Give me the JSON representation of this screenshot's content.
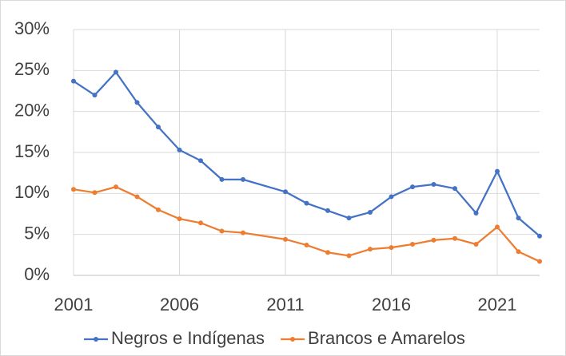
{
  "chart_data": {
    "type": "line",
    "x": [
      2001,
      2002,
      2003,
      2004,
      2005,
      2006,
      2007,
      2008,
      2009,
      2011,
      2012,
      2013,
      2014,
      2015,
      2016,
      2017,
      2018,
      2019,
      2020,
      2021,
      2022,
      2023
    ],
    "series": [
      {
        "name": "Negros e Indígenas",
        "color": "#4472c4",
        "values": [
          23.7,
          22.0,
          24.8,
          21.1,
          18.1,
          15.3,
          14.0,
          11.7,
          11.7,
          10.2,
          8.8,
          7.9,
          7.0,
          7.7,
          9.6,
          10.8,
          11.1,
          10.6,
          7.6,
          12.7,
          7.0,
          4.8
        ]
      },
      {
        "name": "Brancos e Amarelos",
        "color": "#ed7d31",
        "values": [
          10.5,
          10.1,
          10.8,
          9.6,
          8.0,
          6.9,
          6.4,
          5.4,
          5.2,
          4.4,
          3.7,
          2.8,
          2.4,
          3.2,
          3.4,
          3.8,
          4.3,
          4.5,
          3.8,
          5.9,
          2.9,
          1.7
        ]
      }
    ],
    "xlim": [
      2001,
      2023
    ],
    "xticks": [
      2001,
      2006,
      2011,
      2016,
      2021
    ],
    "ylim": [
      0,
      30
    ],
    "yticks": [
      {
        "value": 0,
        "label": "0%"
      },
      {
        "value": 5,
        "label": "5%"
      },
      {
        "value": 10,
        "label": "10%"
      },
      {
        "value": 15,
        "label": "15%"
      },
      {
        "value": 20,
        "label": "20%"
      },
      {
        "value": 25,
        "label": "25%"
      },
      {
        "value": 30,
        "label": "30%"
      }
    ],
    "grid": true,
    "legend": "bottom"
  }
}
